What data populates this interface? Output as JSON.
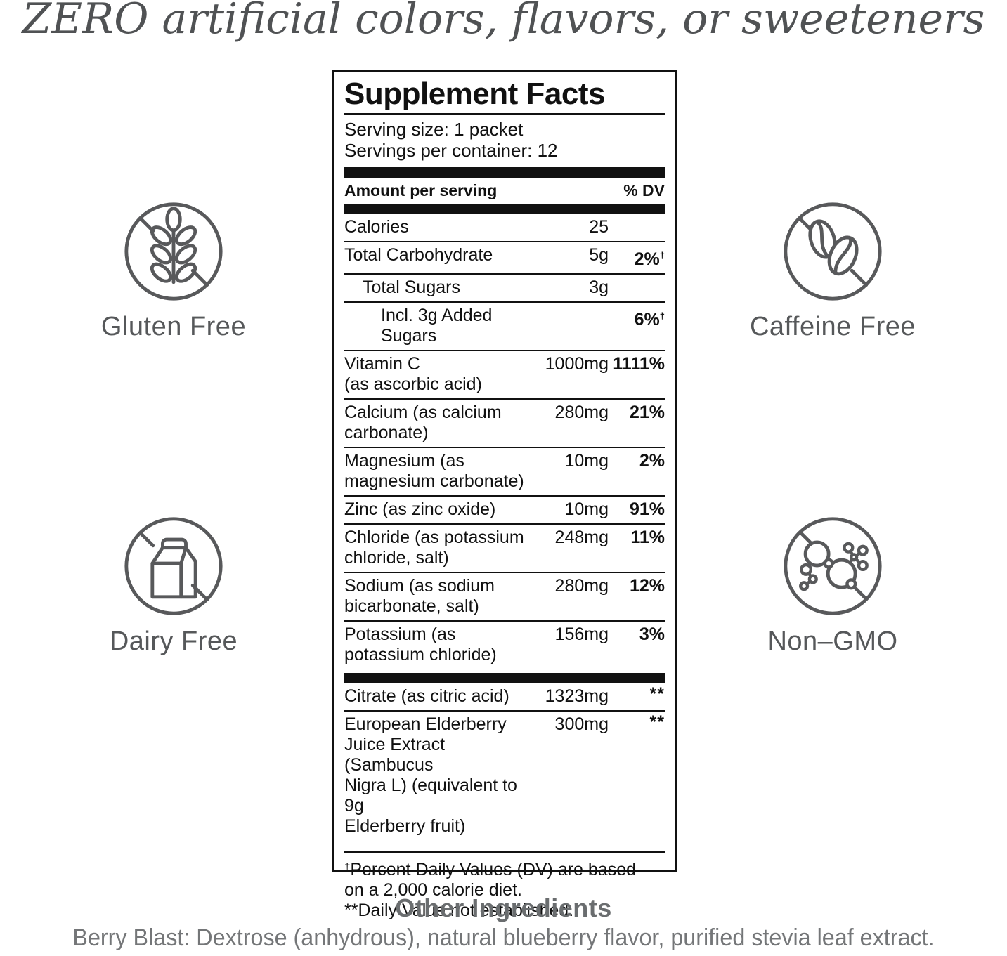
{
  "headline": "ZERO artificial colors, flavors, or sweeteners",
  "badges": [
    {
      "label": "Gluten Free"
    },
    {
      "label": "Caffeine Free"
    },
    {
      "label": "Dairy Free"
    },
    {
      "label": "Non–GMO"
    }
  ],
  "panel": {
    "title": "Supplement Facts",
    "serving_size": "Serving size: 1 packet",
    "servings_per_container": "Servings per container: 12",
    "columns": {
      "amount_header": "Amount per serving",
      "dv_header": "% DV"
    },
    "rows": [
      {
        "name": [
          "Calories"
        ],
        "amount": "25",
        "dv": "",
        "dagger": false,
        "indent": 0
      },
      {
        "name": [
          "Total Carbohydrate"
        ],
        "amount": "5g",
        "dv": "2%",
        "dagger": true,
        "indent": 0
      },
      {
        "name": [
          "Total Sugars"
        ],
        "amount": "3g",
        "dv": "",
        "dagger": false,
        "indent": 1
      },
      {
        "name": [
          "Incl. 3g Added Sugars"
        ],
        "amount": "",
        "dv": "6%",
        "dagger": true,
        "indent": 2
      },
      {
        "name": [
          "Vitamin C",
          "(as ascorbic acid)"
        ],
        "amount": "1000mg",
        "dv": "1111%",
        "dagger": false,
        "indent": 0
      },
      {
        "name": [
          "Calcium (as calcium",
          "carbonate)"
        ],
        "amount": "280mg",
        "dv": "21%",
        "dagger": false,
        "indent": 0
      },
      {
        "name": [
          "Magnesium (as",
          "magnesium carbonate)"
        ],
        "amount": "10mg",
        "dv": "2%",
        "dagger": false,
        "indent": 0
      },
      {
        "name": [
          "Zinc (as zinc oxide)"
        ],
        "amount": "10mg",
        "dv": "91%",
        "dagger": false,
        "indent": 0
      },
      {
        "name": [
          "Chloride (as potassium",
          "chloride, salt)"
        ],
        "amount": "248mg",
        "dv": "11%",
        "dagger": false,
        "indent": 0
      },
      {
        "name": [
          "Sodium (as sodium",
          "bicarbonate, salt)"
        ],
        "amount": "280mg",
        "dv": "12%",
        "dagger": false,
        "indent": 0
      },
      {
        "name": [
          "Potassium (as",
          "potassium chloride)"
        ],
        "amount": "156mg",
        "dv": "3%",
        "dagger": false,
        "indent": 0
      }
    ],
    "blend_rows": [
      {
        "name": [
          "Citrate (as citric acid)"
        ],
        "amount": "1323mg",
        "dv": "**",
        "dagger": false,
        "indent": 0
      },
      {
        "name": [
          "European Elderberry",
          "Juice Extract (Sambucus",
          "Nigra L) (equivalent to 9g",
          "Elderberry fruit)"
        ],
        "amount": "300mg",
        "dv": "**",
        "dagger": false,
        "indent": 0
      }
    ],
    "footnotes": [
      {
        "marker": "†",
        "sup": true,
        "lines": [
          "Percent Daily Values (DV) are based",
          "on a 2,000 calorie diet."
        ]
      },
      {
        "marker": "**",
        "sup": false,
        "lines": [
          "Daily Value not established."
        ]
      }
    ]
  },
  "other_ingredients": {
    "title": "Other Ingredients",
    "text": "Berry Blast: Dextrose (anhydrous), natural blueberry flavor, purified stevia leaf extract."
  },
  "colors": {
    "ink": "#111111",
    "badge_gray": "#58595b",
    "headline_gray": "#505254",
    "footer_gray": "#6a6d6f"
  }
}
